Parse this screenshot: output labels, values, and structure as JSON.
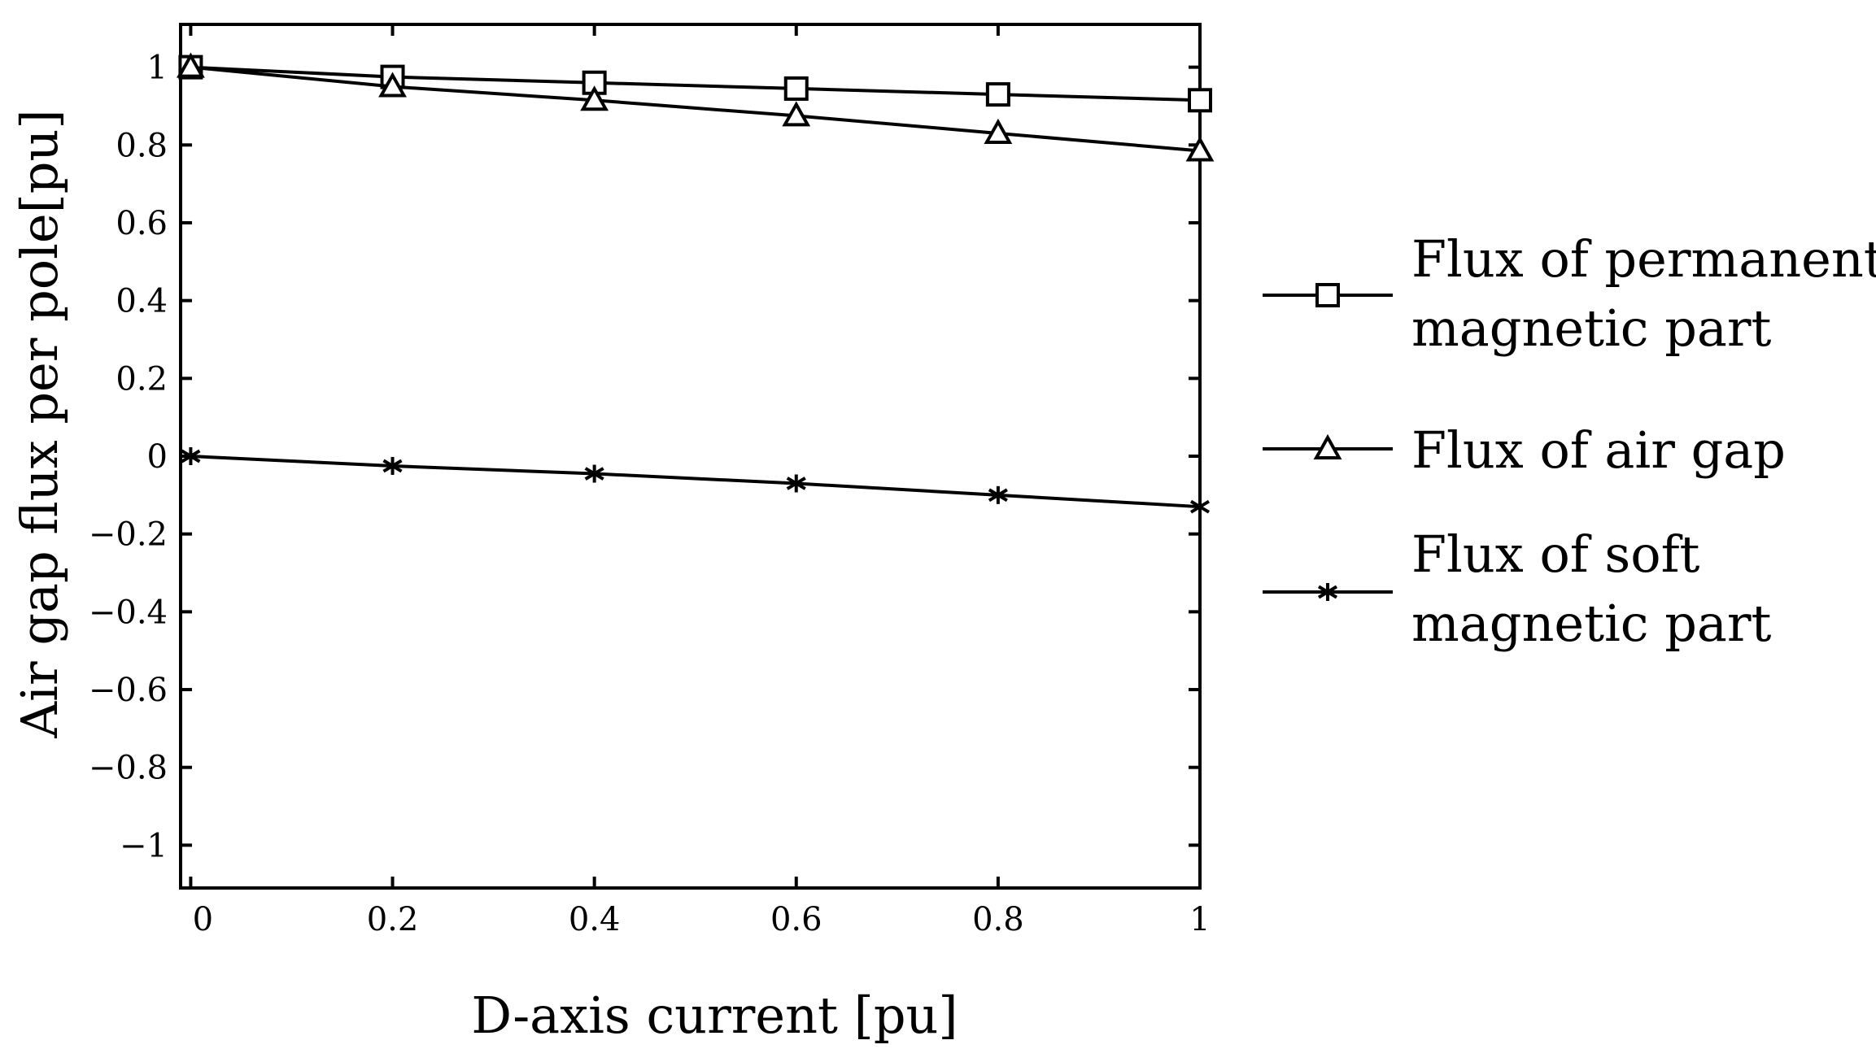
{
  "chart_data": {
    "type": "line",
    "xlabel": "D-axis current [pu]",
    "ylabel": "Air gap flux per pole[pu]",
    "xlim": [
      -0.01,
      1.0
    ],
    "ylim": [
      -1.11,
      1.11
    ],
    "x": [
      0,
      0.2,
      0.4,
      0.6,
      0.8,
      1.0
    ],
    "x_ticks": [
      0,
      0.2,
      0.4,
      0.6,
      0.8,
      1
    ],
    "x_tick_labels": [
      "0",
      "0.2",
      "0.4",
      "0.6",
      "0.8",
      "1"
    ],
    "y_ticks": [
      1,
      0.8,
      0.6,
      0.4,
      0.2,
      0,
      -0.2,
      -0.4,
      -0.6,
      -0.8,
      -1
    ],
    "y_tick_labels": [
      "1",
      "0.8",
      "0.6",
      "0.4",
      "0.2",
      "0",
      "−0.2",
      "−0.4",
      "−0.6",
      "−0.8",
      "−1"
    ],
    "grid": false,
    "legend_position": "outside-right",
    "series": [
      {
        "name": "Flux of permanent magnetic part",
        "legend_lines": [
          "Flux of permanent",
          "magnetic part"
        ],
        "marker": "square",
        "color": "#000000",
        "values": [
          1.0,
          0.975,
          0.96,
          0.945,
          0.93,
          0.915
        ]
      },
      {
        "name": "Flux of air gap",
        "legend_lines": [
          "Flux of air gap"
        ],
        "marker": "triangle",
        "color": "#000000",
        "values": [
          1.0,
          0.95,
          0.915,
          0.875,
          0.83,
          0.785
        ]
      },
      {
        "name": "Flux of soft magnetic part",
        "legend_lines": [
          "Flux of soft",
          "magnetic part"
        ],
        "marker": "asterisk",
        "color": "#000000",
        "values": [
          0.0,
          -0.025,
          -0.045,
          -0.07,
          -0.1,
          -0.13
        ]
      }
    ]
  }
}
